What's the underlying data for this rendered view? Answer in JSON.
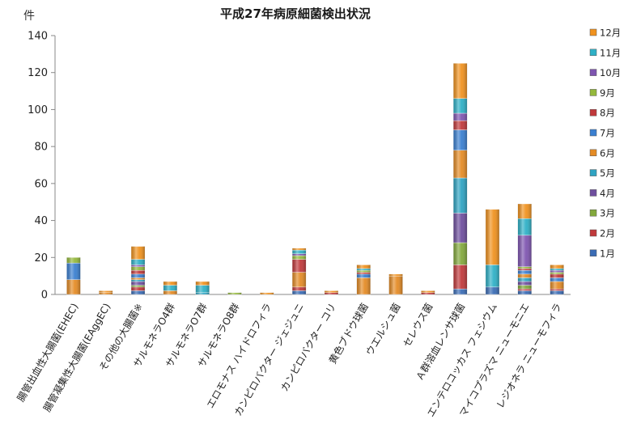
{
  "chart_data": {
    "type": "bar",
    "stacked": true,
    "title": "平成27年病原細菌検出状況",
    "ylabel": "件",
    "xlabel": "",
    "ylim": [
      0,
      140
    ],
    "yticks": [
      0,
      20,
      40,
      60,
      80,
      100,
      120,
      140
    ],
    "grid": false,
    "legend_position": "right",
    "categories": [
      "腸管出血性大腸菌(EHEC)",
      "腸管凝集性大腸菌(EAggEC)",
      "その他の大腸菌※",
      "サルモネラO4群",
      "サルモネラO7群",
      "サルモネラO8群",
      "エロモナス ハイドロフィラ",
      "カンピロバクター ジェジュニ",
      "カンピロバクター コリ",
      "黄色ブドウ球菌",
      "ウエルシュ菌",
      "セレウス菌",
      "Ａ群溶血レンサ球菌",
      "エンテロコッカス フェシウム",
      "マイコプラズマ ニューモニエ",
      "レジオネラ ニューモフィラ"
    ],
    "series": [
      {
        "name": "1月",
        "color": "#3a6cb5",
        "values": [
          0,
          0,
          2,
          0,
          0,
          0,
          0,
          2,
          0,
          0,
          0,
          0,
          3,
          4,
          2,
          2
        ]
      },
      {
        "name": "2月",
        "color": "#c0393b",
        "values": [
          0,
          0,
          2,
          0,
          0,
          0,
          0,
          2,
          1,
          0,
          0,
          1,
          13,
          0,
          1,
          1
        ]
      },
      {
        "name": "3月",
        "color": "#82a83c",
        "values": [
          0,
          0,
          1,
          0,
          0,
          0,
          0,
          0,
          0,
          0,
          0,
          0,
          12,
          0,
          2,
          0
        ]
      },
      {
        "name": "4月",
        "color": "#6e4e9e",
        "values": [
          0,
          0,
          2,
          0,
          0,
          0,
          0,
          0,
          0,
          0,
          0,
          0,
          16,
          0,
          2,
          0
        ]
      },
      {
        "name": "5月",
        "color": "#2ea3c2",
        "values": [
          0,
          0,
          1,
          0,
          1,
          0,
          0,
          0,
          0,
          0,
          0,
          0,
          19,
          0,
          2,
          0
        ]
      },
      {
        "name": "6月",
        "color": "#e48b25",
        "values": [
          8,
          1,
          1,
          2,
          0,
          0,
          0,
          8,
          0,
          9,
          10,
          0,
          15,
          0,
          2,
          4
        ]
      },
      {
        "name": "7月",
        "color": "#3a7fd0",
        "values": [
          9,
          0,
          2,
          0,
          0,
          0,
          0,
          0,
          0,
          2,
          0,
          0,
          11,
          0,
          2,
          2
        ]
      },
      {
        "name": "8月",
        "color": "#c0393b",
        "values": [
          0,
          0,
          2,
          0,
          0,
          0,
          0,
          7,
          0,
          1,
          0,
          0,
          5,
          0,
          1,
          2
        ]
      },
      {
        "name": "9月",
        "color": "#94b83c",
        "values": [
          3,
          0,
          2,
          0,
          0,
          1,
          0,
          2,
          0,
          1,
          0,
          0,
          0,
          0,
          1,
          1
        ]
      },
      {
        "name": "10月",
        "color": "#7e55b0",
        "values": [
          0,
          0,
          1,
          0,
          0,
          0,
          0,
          1,
          0,
          0,
          0,
          0,
          4,
          0,
          17,
          1
        ]
      },
      {
        "name": "11月",
        "color": "#2eb0c6",
        "values": [
          0,
          0,
          3,
          3,
          4,
          0,
          0,
          2,
          0,
          1,
          0,
          0,
          8,
          12,
          9,
          1
        ]
      },
      {
        "name": "12月",
        "color": "#f0921f",
        "values": [
          0,
          1,
          7,
          2,
          2,
          0,
          1,
          1,
          1,
          2,
          1,
          1,
          19,
          30,
          8,
          2
        ]
      }
    ]
  }
}
